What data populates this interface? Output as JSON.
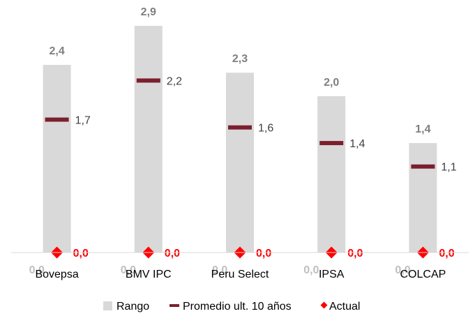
{
  "chart_data": {
    "type": "bar",
    "categories": [
      "Bovepsa",
      "BMV IPC",
      "Peru Select",
      "IPSA",
      "COLCAP"
    ],
    "series": [
      {
        "name": "Rango",
        "kind": "range",
        "min": [
          0.0,
          0.0,
          0.0,
          0.0,
          0.0
        ],
        "max": [
          2.4,
          2.9,
          2.3,
          2.0,
          1.4
        ],
        "color": "#d9d9d9"
      },
      {
        "name": "Promedio ult. 10 años",
        "kind": "marker-dash",
        "values": [
          1.7,
          2.2,
          1.6,
          1.4,
          1.1
        ],
        "color": "#7b1f2e"
      },
      {
        "name": "Actual",
        "kind": "marker-diamond",
        "values": [
          0.0,
          0.0,
          0.0,
          0.0,
          0.0
        ],
        "color": "#ff0000"
      }
    ],
    "max_labels": [
      "2,4",
      "2,9",
      "2,3",
      "2,0",
      "1,4"
    ],
    "min_labels": [
      "0,0",
      "0,0",
      "0,0",
      "0,0",
      "0,0"
    ],
    "avg_labels": [
      "1,7",
      "2,2",
      "1,6",
      "1,4",
      "1,1"
    ],
    "actual_labels": [
      "0,0",
      "0,0",
      "0,0",
      "0,0",
      "0,0"
    ],
    "ylim": [
      0,
      3.0
    ],
    "grid": false,
    "legend_position": "bottom"
  }
}
